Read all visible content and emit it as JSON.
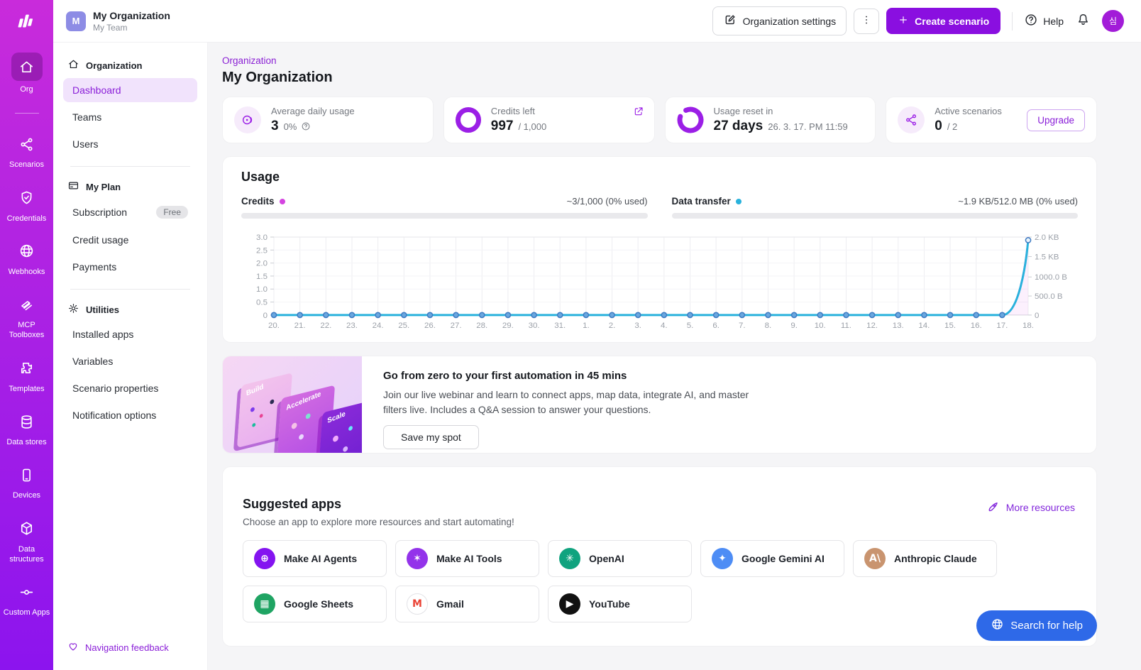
{
  "header": {
    "org_name": "My Organization",
    "team_name": "My Team",
    "org_avatar_letter": "M",
    "settings_label": "Organization settings",
    "create_label": "Create scenario",
    "help_label": "Help",
    "user_avatar_text": "심"
  },
  "rail": {
    "items": [
      {
        "label": "Org",
        "icon": "home-icon",
        "active": true,
        "divider_after": true
      },
      {
        "label": "Scenarios",
        "icon": "nodes-icon"
      },
      {
        "label": "Credentials",
        "icon": "shield-icon"
      },
      {
        "label": "Webhooks",
        "icon": "globe-icon"
      },
      {
        "label": "MCP Toolboxes",
        "icon": "toolbox-icon"
      },
      {
        "label": "Templates",
        "icon": "puzzle-icon"
      },
      {
        "label": "Data stores",
        "icon": "database-icon"
      },
      {
        "label": "Devices",
        "icon": "device-icon"
      },
      {
        "label": "Data structures",
        "icon": "cube-icon"
      },
      {
        "label": "Custom Apps",
        "icon": "circuit-icon"
      }
    ]
  },
  "sidebar": {
    "sections": [
      {
        "title": "Organization",
        "icon": "home-icon",
        "items": [
          {
            "label": "Dashboard",
            "active": true
          },
          {
            "label": "Teams"
          },
          {
            "label": "Users"
          }
        ]
      },
      {
        "title": "My Plan",
        "icon": "card-icon",
        "items": [
          {
            "label": "Subscription",
            "badge": "Free"
          },
          {
            "label": "Credit usage"
          },
          {
            "label": "Payments"
          }
        ]
      },
      {
        "title": "Utilities",
        "icon": "gear-icon",
        "items": [
          {
            "label": "Installed apps"
          },
          {
            "label": "Variables"
          },
          {
            "label": "Scenario properties"
          },
          {
            "label": "Notification options"
          }
        ]
      }
    ],
    "footer_link": "Navigation feedback"
  },
  "main": {
    "breadcrumb": "Organization",
    "title": "My Organization",
    "stats": [
      {
        "label": "Average daily usage",
        "value": "3",
        "suffix": "0%",
        "visual": "pulse",
        "has_help": true
      },
      {
        "label": "Credits left",
        "value": "997",
        "suffix": "/ 1,000",
        "visual": "donut",
        "corner_icon": "external-link-icon"
      },
      {
        "label": "Usage reset in",
        "value": "27 days",
        "suffix": "26. 3. 17. PM 11:59",
        "visual": "ring"
      },
      {
        "label": "Active scenarios",
        "value": "0",
        "suffix": "/ 2",
        "visual": "nodes",
        "action": "Upgrade"
      }
    ],
    "usage": {
      "title": "Usage",
      "credits_label": "Credits",
      "credits_usage": "~3/1,000 (0% used)",
      "transfer_label": "Data transfer",
      "transfer_usage": "~1.9 KB/512.0 MB (0% used)"
    },
    "webinar": {
      "title": "Go from zero to your first automation in 45 mins",
      "body": "Join our live webinar and learn to connect apps, map data, integrate AI, and master filters live. Includes a Q&A session to answer your questions.",
      "cta": "Save my spot",
      "illustration_labels": [
        "Build",
        "Accelerate",
        "Scale"
      ]
    },
    "apps": {
      "title": "Suggested apps",
      "subtitle": "Choose an app to explore more resources and start automating!",
      "more_link": "More resources",
      "items": [
        {
          "name": "Make AI Agents",
          "color": "#8414f0",
          "glyph": "⊕",
          "glyph_color": "#ffffff"
        },
        {
          "name": "Make AI Tools",
          "color": "#9333ea",
          "glyph": "✶",
          "glyph_color": "#ffffff"
        },
        {
          "name": "OpenAI",
          "color": "#10a37f",
          "glyph": "✳",
          "glyph_color": "#ffffff"
        },
        {
          "name": "Google Gemini AI",
          "color": "#4e8df5",
          "glyph": "✦",
          "glyph_color": "#ffffff"
        },
        {
          "name": "Anthropic Claude",
          "color": "#c9946f",
          "glyph": "A\\",
          "glyph_color": "#ffffff"
        },
        {
          "name": "Google Sheets",
          "color": "#1fa463",
          "glyph": "▦",
          "glyph_color": "#ffffff"
        },
        {
          "name": "Gmail",
          "color": "#ffffff",
          "glyph": "M",
          "glyph_color": "#ea4335",
          "border": "#e2e2e6"
        },
        {
          "name": "YouTube",
          "color": "#111111",
          "glyph": "▶",
          "glyph_color": "#ffffff"
        }
      ]
    }
  },
  "help_button": {
    "label": "Search for help"
  },
  "chart_data": {
    "type": "line",
    "title": "Usage",
    "categories": [
      "20.",
      "21.",
      "22.",
      "23.",
      "24.",
      "25.",
      "26.",
      "27.",
      "28.",
      "29.",
      "30.",
      "31.",
      "1.",
      "2.",
      "3.",
      "4.",
      "5.",
      "6.",
      "7.",
      "8.",
      "9.",
      "10.",
      "11.",
      "12.",
      "13.",
      "14.",
      "15.",
      "16.",
      "17.",
      "18."
    ],
    "series": [
      {
        "name": "Credits",
        "axis": "left",
        "color": "#d444e0",
        "values": [
          0,
          0,
          0,
          0,
          0,
          0,
          0,
          0,
          0,
          0,
          0,
          0,
          0,
          0,
          0,
          0,
          0,
          0,
          0,
          0,
          0,
          0,
          0,
          0,
          0,
          0,
          0,
          0,
          0,
          3
        ]
      },
      {
        "name": "Data transfer",
        "axis": "right",
        "color": "#29b2dc",
        "values": [
          0,
          0,
          0,
          0,
          0,
          0,
          0,
          0,
          0,
          0,
          0,
          0,
          0,
          0,
          0,
          0,
          0,
          0,
          0,
          0,
          0,
          0,
          0,
          0,
          0,
          0,
          0,
          0,
          0,
          1966
        ]
      }
    ],
    "left_axis": {
      "ticks": [
        "0",
        "0.5",
        "1.0",
        "1.5",
        "2.0",
        "2.5",
        "3.0"
      ],
      "values": [
        0,
        0.5,
        1,
        1.5,
        2,
        2.5,
        3
      ],
      "max": 3
    },
    "right_axis": {
      "ticks": [
        "0",
        "500.0 B",
        "1000.0 B",
        "1.5 KB",
        "2.0 KB"
      ],
      "values": [
        0,
        500,
        1000,
        1536,
        2048
      ],
      "max": 2048
    },
    "grid": "vertical",
    "legend": "none",
    "marker_fill": "#6aa7df",
    "marker_stroke": "#3d7ac2"
  },
  "colors": {
    "brand_magenta": "#c92bdb",
    "brand_purple": "#8a0fe0",
    "accent_link": "#8a1ed8",
    "credits_dot": "#d444e0",
    "transfer_dot": "#29b2dc",
    "help_blue": "#2e69e8"
  }
}
